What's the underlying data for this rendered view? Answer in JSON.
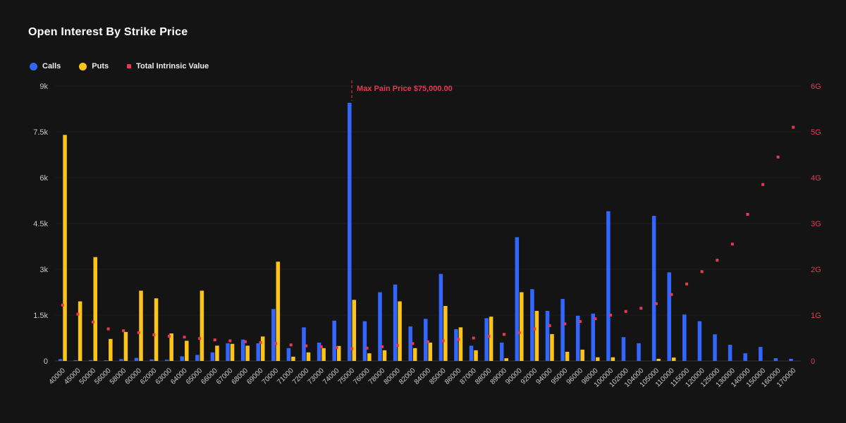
{
  "title": "Open Interest By Strike Price",
  "colors": {
    "background": "#141414",
    "calls": "#3366ff",
    "puts": "#fcc419",
    "intrinsic": "#e63950",
    "axis_text": "#c9c9c9",
    "grid": "#1c1c1c",
    "baseline": "#2e2e2e",
    "title_text": "#ffffff",
    "legend_text": "#eeeeee"
  },
  "legend": [
    {
      "label": "Calls",
      "color": "#3366ff",
      "shape": "circle"
    },
    {
      "label": "Puts",
      "color": "#fcc419",
      "shape": "circle"
    },
    {
      "label": "Total Intrinsic Value",
      "color": "#e63950",
      "shape": "square"
    }
  ],
  "chart_data": {
    "type": "bar",
    "title": "Open Interest By Strike Price",
    "xlabel": "",
    "ylabel": "",
    "ylim": [
      0,
      9000
    ],
    "y2lim_g": [
      0,
      6
    ],
    "y_ticks": [
      "0",
      "1.5k",
      "3k",
      "4.5k",
      "6k",
      "7.5k",
      "9k"
    ],
    "y2_ticks": [
      "0",
      "1G",
      "2G",
      "3G",
      "4G",
      "5G",
      "6G"
    ],
    "grid": true,
    "legend_position": "top-left",
    "categories": [
      "40000",
      "45000",
      "50000",
      "56000",
      "58000",
      "60000",
      "62000",
      "63000",
      "64000",
      "65000",
      "66000",
      "67000",
      "68000",
      "69000",
      "70000",
      "71000",
      "72000",
      "73000",
      "74000",
      "75000",
      "76000",
      "78000",
      "80000",
      "82000",
      "84000",
      "85000",
      "86000",
      "87000",
      "88000",
      "89000",
      "90000",
      "92000",
      "94000",
      "95000",
      "96000",
      "98000",
      "100000",
      "102000",
      "104000",
      "105000",
      "110000",
      "115000",
      "120000",
      "125000",
      "130000",
      "140000",
      "150000",
      "160000",
      "170000"
    ],
    "series": [
      {
        "name": "Calls",
        "type": "bar",
        "axis": "left",
        "color": "#3366ff",
        "values": [
          60,
          20,
          30,
          20,
          60,
          100,
          50,
          40,
          150,
          200,
          280,
          580,
          700,
          580,
          1700,
          420,
          1100,
          600,
          1320,
          8450,
          1300,
          2250,
          2500,
          1130,
          1380,
          2850,
          1040,
          500,
          1400,
          600,
          4050,
          2350,
          1640,
          2030,
          1480,
          1550,
          4900,
          780,
          580,
          4750,
          2900,
          1520,
          1300,
          870,
          530,
          250,
          460,
          90,
          70
        ]
      },
      {
        "name": "Puts",
        "type": "bar",
        "axis": "left",
        "color": "#fcc419",
        "values": [
          7400,
          1950,
          3400,
          720,
          950,
          2300,
          2050,
          900,
          660,
          2300,
          500,
          560,
          500,
          800,
          3250,
          140,
          280,
          420,
          490,
          2000,
          250,
          350,
          1950,
          420,
          600,
          1800,
          1100,
          350,
          1450,
          90,
          2250,
          1640,
          880,
          300,
          370,
          120,
          120,
          0,
          0,
          70,
          110,
          0,
          0,
          0,
          0,
          0,
          0,
          0,
          0
        ]
      },
      {
        "name": "Total Intrinsic Value",
        "type": "scatter",
        "axis": "right",
        "unit": "G",
        "color": "#e63950",
        "values_g": [
          1.22,
          1.02,
          0.85,
          0.7,
          0.66,
          0.62,
          0.57,
          0.54,
          0.52,
          0.49,
          0.46,
          0.44,
          0.42,
          0.4,
          0.38,
          0.35,
          0.33,
          0.31,
          0.29,
          0.27,
          0.28,
          0.31,
          0.34,
          0.38,
          0.42,
          0.44,
          0.47,
          0.5,
          0.54,
          0.58,
          0.62,
          0.7,
          0.77,
          0.81,
          0.86,
          0.92,
          1.0,
          1.08,
          1.15,
          1.25,
          1.45,
          1.68,
          1.95,
          2.2,
          2.55,
          3.2,
          3.85,
          4.45,
          5.1
        ]
      }
    ],
    "annotation": {
      "label": "Max Pain Price $75,000.00",
      "strike": "75000"
    }
  }
}
